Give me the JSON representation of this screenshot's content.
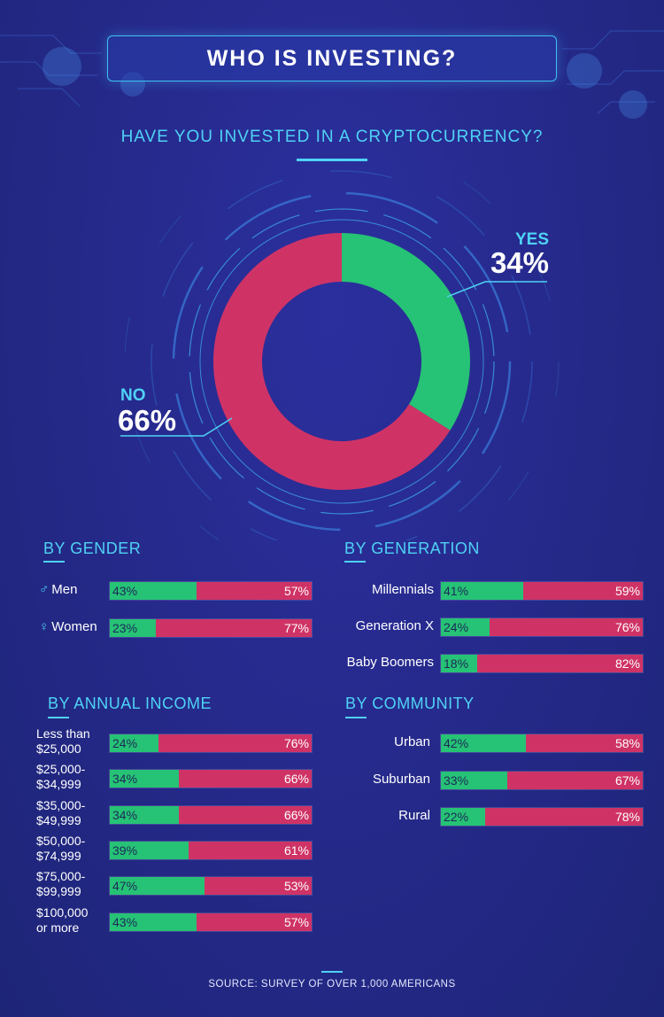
{
  "title": "WHO IS INVESTING?",
  "question": "HAVE YOU INVESTED IN A CRYPTOCURRENCY?",
  "colors": {
    "yes": "#26c275",
    "no": "#cf3366",
    "accent": "#4fd2f5",
    "background": "#262a8c"
  },
  "chart_data": [
    {
      "type": "pie",
      "title": "HAVE YOU INVESTED IN A CRYPTOCURRENCY?",
      "slices": [
        {
          "label": "YES",
          "value": 34,
          "display": "34%"
        },
        {
          "label": "NO",
          "value": 66,
          "display": "66%"
        }
      ]
    },
    {
      "type": "bar",
      "title": "BY GENDER",
      "stacked": true,
      "categories": [
        "Men",
        "Women"
      ],
      "icons": [
        "male-icon",
        "female-icon"
      ],
      "series": [
        {
          "values": [
            43,
            57
          ]
        },
        {
          "values": [
            23,
            77
          ]
        }
      ],
      "yes": [
        43,
        23
      ],
      "no": [
        57,
        77
      ],
      "yes_labels": [
        "43%",
        "23%"
      ],
      "no_labels": [
        "57%",
        "77%"
      ]
    },
    {
      "type": "bar",
      "title": "BY GENERATION",
      "stacked": true,
      "categories": [
        "Millennials",
        "Generation X",
        "Baby Boomers"
      ],
      "yes": [
        41,
        24,
        18
      ],
      "no": [
        59,
        76,
        82
      ],
      "yes_labels": [
        "41%",
        "24%",
        "18%"
      ],
      "no_labels": [
        "59%",
        "76%",
        "82%"
      ]
    },
    {
      "type": "bar",
      "title": "BY ANNUAL INCOME",
      "stacked": true,
      "categories": [
        [
          "Less than",
          "$25,000"
        ],
        [
          "$25,000-",
          "$34,999"
        ],
        [
          "$35,000-",
          "$49,999"
        ],
        [
          "$50,000-",
          "$74,999"
        ],
        [
          "$75,000-",
          "$99,999"
        ],
        [
          "$100,000",
          "or more"
        ]
      ],
      "yes": [
        24,
        34,
        34,
        39,
        47,
        43
      ],
      "no": [
        76,
        66,
        66,
        61,
        53,
        57
      ],
      "yes_labels": [
        "24%",
        "34%",
        "34%",
        "39%",
        "47%",
        "43%"
      ],
      "no_labels": [
        "76%",
        "66%",
        "66%",
        "61%",
        "53%",
        "57%"
      ]
    },
    {
      "type": "bar",
      "title": "BY COMMUNITY",
      "stacked": true,
      "categories": [
        "Urban",
        "Suburban",
        "Rural"
      ],
      "yes": [
        42,
        33,
        22
      ],
      "no": [
        58,
        67,
        78
      ],
      "yes_labels": [
        "42%",
        "33%",
        "22%"
      ],
      "no_labels": [
        "58%",
        "67%",
        "78%"
      ]
    }
  ],
  "source": "SOURCE: SURVEY OF OVER 1,000 AMERICANS"
}
